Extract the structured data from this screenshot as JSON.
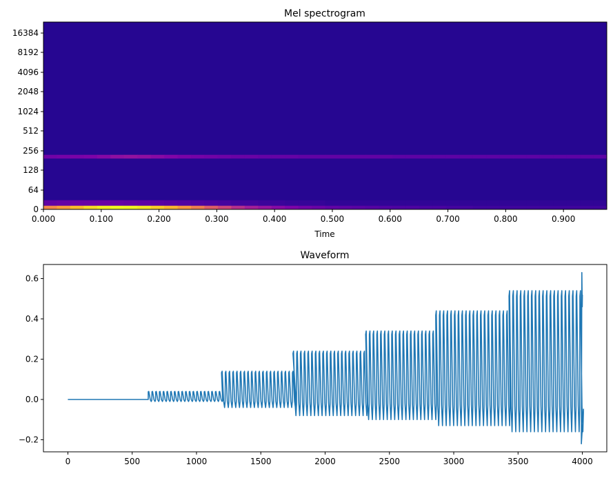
{
  "chart_data": [
    {
      "type": "heatmap",
      "title": "Mel spectrogram",
      "xlabel": "Time",
      "ylabel": "",
      "xlim": [
        0,
        0.975
      ],
      "x_ticks": [
        "0.000",
        "0.100",
        "0.200",
        "0.300",
        "0.400",
        "0.500",
        "0.600",
        "0.700",
        "0.800",
        "0.900"
      ],
      "x_tick_values": [
        0,
        0.1,
        0.2,
        0.3,
        0.4,
        0.5,
        0.6,
        0.7,
        0.8,
        0.9
      ],
      "y_ticks": [
        "0",
        "64",
        "128",
        "256",
        "512",
        "1024",
        "2048",
        "4096",
        "8192",
        "16384"
      ],
      "y_scale": "mel",
      "colormap": "plasma",
      "time_frames": 42,
      "frame_duration": 0.02322,
      "rows": [
        {
          "band_lo": 0,
          "band_hi": 50,
          "values": [
            0.72,
            0.78,
            0.86,
            0.93,
            0.98,
            1.0,
            0.99,
            0.96,
            0.9,
            0.84,
            0.76,
            0.68,
            0.58,
            0.5,
            0.42,
            0.36,
            0.32,
            0.28,
            0.25,
            0.22,
            0.2,
            0.18,
            0.17,
            0.16,
            0.15,
            0.14,
            0.13,
            0.13,
            0.12,
            0.12,
            0.11,
            0.11,
            0.1,
            0.1,
            0.1,
            0.1,
            0.1,
            0.1,
            0.1,
            0.1,
            0.1,
            0.1
          ]
        },
        {
          "band_lo": 50,
          "band_hi": 130,
          "values": [
            0.18,
            0.19,
            0.2,
            0.2,
            0.2,
            0.19,
            0.18,
            0.17,
            0.16,
            0.15,
            0.14,
            0.13,
            0.12,
            0.11,
            0.1,
            0.1,
            0.09,
            0.09,
            0.08,
            0.08,
            0.08,
            0.07,
            0.07,
            0.07,
            0.07,
            0.07,
            0.07,
            0.07,
            0.07,
            0.07,
            0.07,
            0.07,
            0.07,
            0.07,
            0.07,
            0.07,
            0.07,
            0.07,
            0.07,
            0.07,
            0.07,
            0.07
          ]
        },
        {
          "band_lo": 1100,
          "band_hi": 1230,
          "values": [
            0.22,
            0.23,
            0.24,
            0.25,
            0.27,
            0.3,
            0.31,
            0.3,
            0.28,
            0.26,
            0.24,
            0.23,
            0.22,
            0.21,
            0.2,
            0.2,
            0.19,
            0.19,
            0.19,
            0.18,
            0.18,
            0.18,
            0.18,
            0.18,
            0.18,
            0.18,
            0.17,
            0.17,
            0.17,
            0.17,
            0.17,
            0.17,
            0.17,
            0.17,
            0.17,
            0.17,
            0.17,
            0.17,
            0.17,
            0.17,
            0.17,
            0.17
          ]
        }
      ],
      "background_value": 0.05
    },
    {
      "type": "line",
      "title": "Waveform",
      "xlabel": "",
      "ylabel": "",
      "xlim": [
        -190,
        4190
      ],
      "ylim": [
        -0.26,
        0.67
      ],
      "x_ticks": [
        "0",
        "500",
        "1000",
        "1500",
        "2000",
        "2500",
        "3000",
        "3500",
        "4000"
      ],
      "x_tick_values": [
        0,
        500,
        1000,
        1500,
        2000,
        2500,
        3000,
        3500,
        4000
      ],
      "y_ticks": [
        "−0.2",
        "0.0",
        "0.2",
        "0.4",
        "0.6"
      ],
      "y_tick_values": [
        -0.2,
        0,
        0.2,
        0.4,
        0.6
      ],
      "color": "#1f77b4",
      "segments": [
        {
          "start": 0,
          "end": 625,
          "max": 0.0,
          "min": 0.0,
          "period": 0
        },
        {
          "start": 625,
          "end": 1195,
          "max": 0.04,
          "min": -0.01,
          "period": 29
        },
        {
          "start": 1195,
          "end": 1750,
          "max": 0.14,
          "min": -0.04,
          "period": 29
        },
        {
          "start": 1750,
          "end": 2315,
          "max": 0.24,
          "min": -0.08,
          "period": 29
        },
        {
          "start": 2315,
          "end": 2860,
          "max": 0.34,
          "min": -0.1,
          "period": 29
        },
        {
          "start": 2860,
          "end": 3430,
          "max": 0.44,
          "min": -0.13,
          "period": 29
        },
        {
          "start": 3430,
          "end": 3990,
          "max": 0.54,
          "min": -0.16,
          "period": 29
        }
      ],
      "final_peak": 0.63,
      "final_trough": -0.22
    }
  ]
}
